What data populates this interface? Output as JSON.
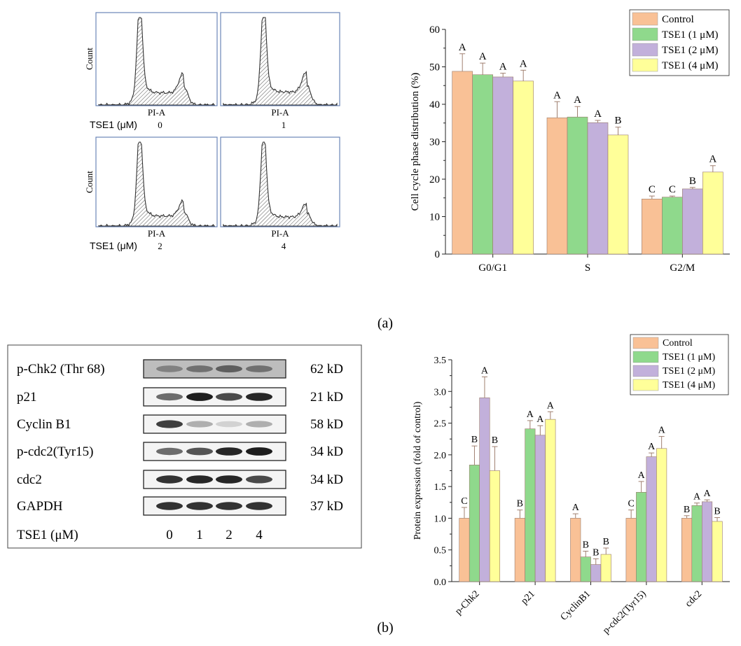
{
  "panels": {
    "a_label": "(a)",
    "b_label": "(b)"
  },
  "flow": {
    "ylabel": "Count",
    "xlabel": "PI-A",
    "dose_label": "TSE1 (μM)",
    "doses": [
      "0",
      "1",
      "2",
      "4"
    ]
  },
  "western": {
    "rows": [
      {
        "name": "p-Chk2 (Thr 68)",
        "size": "62 kD",
        "bands": [
          0.35,
          0.45,
          0.55,
          0.45
        ]
      },
      {
        "name": "p21",
        "size": "21 kD",
        "bands": [
          0.6,
          0.95,
          0.75,
          0.9
        ]
      },
      {
        "name": "Cyclin B1",
        "size": "58 kD",
        "bands": [
          0.8,
          0.3,
          0.15,
          0.3
        ]
      },
      {
        "name": "p-cdc2(Tyr15)",
        "size": "34 kD",
        "bands": [
          0.6,
          0.7,
          0.9,
          0.95
        ]
      },
      {
        "name": "cdc2",
        "size": "34 kD",
        "bands": [
          0.85,
          0.9,
          0.9,
          0.75
        ]
      },
      {
        "name": "GAPDH",
        "size": "37 kD",
        "bands": [
          0.85,
          0.85,
          0.85,
          0.85
        ]
      }
    ],
    "dose_label": "TSE1 (μM)",
    "doses": [
      "0",
      "1",
      "2",
      "4"
    ]
  },
  "chart_data": [
    {
      "type": "bar",
      "title": "",
      "ylabel": "Cell cycle phase distribution (%)",
      "xlabel": "",
      "ylim": [
        0,
        60
      ],
      "yticks": [
        0,
        10,
        20,
        30,
        40,
        50,
        60
      ],
      "categories": [
        "G0/G1",
        "S",
        "G2/M"
      ],
      "series": [
        {
          "name": "Control",
          "color": "#F9C196",
          "values": [
            48.8,
            36.4,
            14.7
          ],
          "errors": [
            4.7,
            4.3,
            0.8
          ],
          "letters": [
            "A",
            "A",
            "C"
          ]
        },
        {
          "name": "TSE1 (1 μM)",
          "color": "#8FD98C",
          "values": [
            47.9,
            36.6,
            15.2
          ],
          "errors": [
            3.1,
            2.8,
            0.3
          ],
          "letters": [
            "A",
            "A",
            "C"
          ]
        },
        {
          "name": "TSE1 (2 μM)",
          "color": "#C2B0DB",
          "values": [
            47.3,
            35.1,
            17.4
          ],
          "errors": [
            1.0,
            0.6,
            0.4
          ],
          "letters": [
            "A",
            "A",
            "B"
          ]
        },
        {
          "name": "TSE1 (4 μM)",
          "color": "#FFFF99",
          "values": [
            46.2,
            31.8,
            21.9
          ],
          "errors": [
            2.9,
            2.1,
            1.7
          ],
          "letters": [
            "A",
            "B",
            "A"
          ]
        }
      ],
      "legend": "top-right"
    },
    {
      "type": "bar",
      "title": "",
      "ylabel": "Protein expression (fold of control)",
      "xlabel": "",
      "ylim": [
        0,
        3.5
      ],
      "yticks": [
        0.0,
        0.5,
        1.0,
        1.5,
        2.0,
        2.5,
        3.0,
        3.5
      ],
      "categories": [
        "p-Chk2",
        "p21",
        "CyclinB1",
        "p-cdc2(Tyr15)",
        "cdc2"
      ],
      "series": [
        {
          "name": "Control",
          "color": "#F9C196",
          "values": [
            1.0,
            1.0,
            1.0,
            1.0,
            1.0
          ],
          "errors": [
            0.17,
            0.13,
            0.07,
            0.13,
            0.04
          ],
          "letters": [
            "C",
            "B",
            "A",
            "C",
            "B"
          ]
        },
        {
          "name": "TSE1 (1 μM)",
          "color": "#8FD98C",
          "values": [
            1.84,
            2.41,
            0.39,
            1.41,
            1.2
          ],
          "errors": [
            0.3,
            0.13,
            0.09,
            0.17,
            0.04
          ],
          "letters": [
            "B",
            "A",
            "B",
            "A",
            "A"
          ]
        },
        {
          "name": "TSE1 (2 μM)",
          "color": "#C2B0DB",
          "values": [
            2.9,
            2.31,
            0.27,
            1.97,
            1.26
          ],
          "errors": [
            0.33,
            0.15,
            0.09,
            0.06,
            0.03
          ],
          "letters": [
            "A",
            "A",
            "B",
            "A",
            "A"
          ]
        },
        {
          "name": "TSE1 (4 μM)",
          "color": "#FFFF99",
          "values": [
            1.75,
            2.56,
            0.43,
            2.1,
            0.95
          ],
          "errors": [
            0.38,
            0.12,
            0.1,
            0.19,
            0.06
          ],
          "letters": [
            "B",
            "A",
            "B",
            "A",
            "B"
          ]
        }
      ],
      "legend": "top-right"
    }
  ]
}
